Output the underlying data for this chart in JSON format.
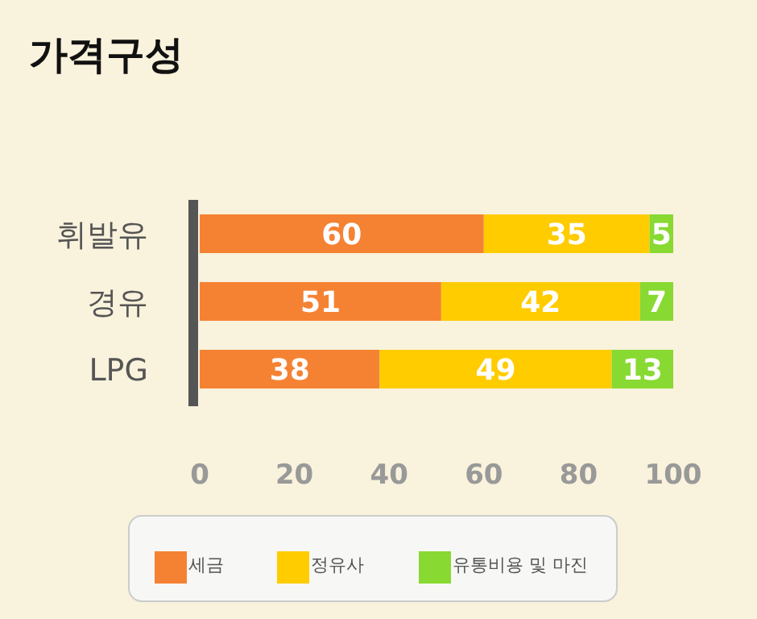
{
  "chart_data": {
    "type": "bar",
    "title": "가격구성",
    "orientation": "horizontal",
    "stacked": true,
    "data_labels": true,
    "legend": "bottom",
    "categories": [
      "휘발유",
      "경유",
      "LPG"
    ],
    "xlim": [
      0,
      100
    ],
    "xticks": [
      0,
      20,
      40,
      60,
      80,
      100
    ],
    "series": [
      {
        "name": "세금",
        "color": "#f58233",
        "values": [
          60,
          51,
          38
        ]
      },
      {
        "name": "정유사",
        "color": "#ffcc00",
        "values": [
          35,
          42,
          49
        ]
      },
      {
        "name": "유통비용 및 마진",
        "color": "#88d932",
        "values": [
          5,
          7,
          13
        ]
      }
    ]
  }
}
